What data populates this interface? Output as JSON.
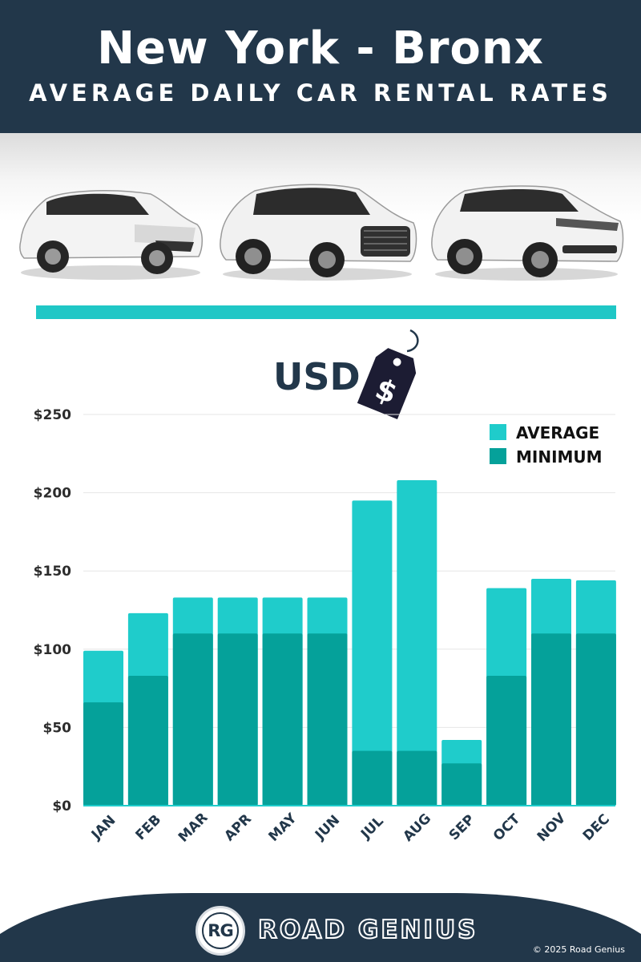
{
  "header": {
    "title": "New York - Bronx",
    "subtitle": "AVERAGE DAILY CAR RENTAL RATES"
  },
  "currency_label": "USD",
  "price_tag_symbol": "$",
  "colors": {
    "header_bg": "#22374a",
    "average": "#1fcccb",
    "minimum": "#05a19a",
    "divider": "#1fc7c6"
  },
  "chart_data": {
    "type": "bar",
    "stacked": "overlay",
    "categories": [
      "JAN",
      "FEB",
      "MAR",
      "APR",
      "MAY",
      "JUN",
      "JUL",
      "AUG",
      "SEP",
      "OCT",
      "NOV",
      "DEC"
    ],
    "series": [
      {
        "name": "AVERAGE",
        "color": "#1fcccb",
        "values": [
          99,
          123,
          133,
          133,
          133,
          133,
          195,
          208,
          42,
          139,
          145,
          144
        ]
      },
      {
        "name": "MINIMUM",
        "color": "#05a19a",
        "values": [
          66,
          83,
          110,
          110,
          110,
          110,
          35,
          35,
          27,
          83,
          110,
          110
        ]
      }
    ],
    "y_ticks": [
      "$0",
      "$50",
      "$100",
      "$150",
      "$200",
      "$250"
    ],
    "ylim": [
      0,
      250
    ],
    "grid": true,
    "legend_position": "top-right"
  },
  "footer": {
    "logo_text": "RG",
    "brand": "ROAD GENIUS",
    "copyright": "© 2025 Road Genius"
  }
}
